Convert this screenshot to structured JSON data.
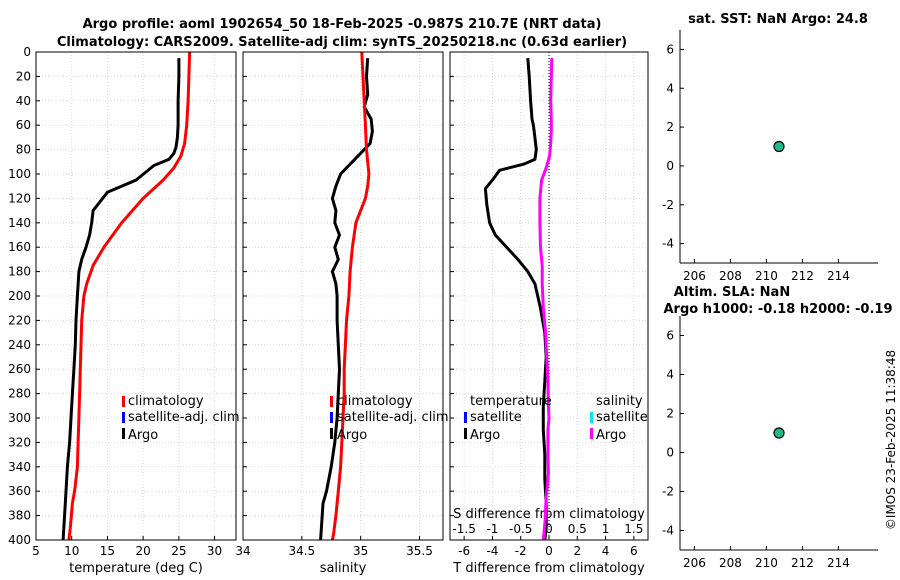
{
  "header": {
    "title_line1": "Argo profile: aoml 1902654_50 18-Feb-2025 -0.987S 210.7E (NRT data)",
    "title_line2": "Climatology: CARS2009. Satellite-adj clim: synTS_20250218.nc (0.63d earlier)"
  },
  "right_panels": {
    "sst_title": "sat. SST: NaN Argo: 24.8",
    "sla_title_line1": "Altim. SLA: NaN",
    "sla_title_line2": "Argo h1000: -0.18 h2000: -0.19"
  },
  "stamp": "©IMOS 23-Feb-2025 11:38:48",
  "colors": {
    "argo": "#000000",
    "climatology": "#ff0000",
    "satellite": "#0000ff",
    "s_satellite": "#00e5ee",
    "s_argo": "#ff00ff",
    "marker_fill": "#1abc8c"
  },
  "chart_data": [
    {
      "type": "line",
      "title": "",
      "xlabel": "temperature (deg C)",
      "ylabel": "",
      "xlim": [
        5,
        33
      ],
      "ylim": [
        400,
        0
      ],
      "xticks": [
        "5",
        "10",
        "15",
        "20",
        "25",
        "30"
      ],
      "yticks": [
        "0",
        "20",
        "40",
        "60",
        "80",
        "100",
        "120",
        "140",
        "160",
        "180",
        "200",
        "220",
        "240",
        "260",
        "280",
        "300",
        "320",
        "340",
        "360",
        "380",
        "400"
      ],
      "legend": [
        "climatology",
        "satellite-adj. clim",
        "Argo"
      ],
      "series": [
        {
          "name": "Argo",
          "color": "#000000",
          "x": [
            25.0,
            25.0,
            24.9,
            24.9,
            24.8,
            24.6,
            24.3,
            23.6,
            21.5,
            19.0,
            15.0,
            13.0,
            12.8,
            12.5,
            12.0,
            11.4,
            11.0,
            10.8,
            10.6,
            10.5,
            10.3,
            10.1,
            9.9,
            9.7,
            9.4,
            9.1,
            8.8
          ],
          "y": [
            5,
            20,
            40,
            60,
            70,
            78,
            83,
            88,
            93,
            105,
            115,
            130,
            140,
            150,
            160,
            170,
            180,
            200,
            220,
            240,
            260,
            280,
            300,
            320,
            340,
            370,
            400
          ]
        },
        {
          "name": "climatology",
          "color": "#ff0000",
          "x": [
            26.5,
            26.4,
            26.3,
            26.1,
            25.8,
            25.3,
            24.3,
            22.8,
            20.0,
            17.0,
            14.5,
            13.0,
            12.1,
            11.7,
            11.4,
            11.3,
            11.2,
            11.1,
            11.0,
            10.9,
            10.8,
            10.6,
            10.4,
            10.1,
            9.8,
            9.6
          ],
          "y": [
            0,
            20,
            40,
            60,
            75,
            85,
            95,
            105,
            120,
            140,
            160,
            175,
            190,
            200,
            220,
            240,
            260,
            280,
            300,
            320,
            340,
            350,
            360,
            370,
            390,
            400
          ]
        }
      ]
    },
    {
      "type": "line",
      "title": "",
      "xlabel": "salinity",
      "ylabel": "",
      "xlim": [
        34.0,
        35.7
      ],
      "ylim": [
        400,
        0
      ],
      "xticks": [
        "34",
        "34.5",
        "35",
        "35.5"
      ],
      "yticks": [],
      "legend": [
        "climatology",
        "satellite-adj. clim",
        "Argo"
      ],
      "series": [
        {
          "name": "Argo",
          "color": "#000000",
          "x": [
            35.06,
            35.05,
            35.06,
            35.03,
            35.09,
            35.1,
            35.08,
            34.93,
            34.83,
            34.79,
            34.76,
            34.79,
            34.78,
            34.82,
            34.78,
            34.81,
            34.76,
            34.79,
            34.8,
            34.8,
            34.81,
            34.82,
            34.81,
            34.8,
            34.78,
            34.75,
            34.71,
            34.68,
            34.67,
            34.66
          ],
          "y": [
            5,
            20,
            35,
            45,
            55,
            65,
            75,
            90,
            100,
            110,
            120,
            130,
            140,
            150,
            160,
            170,
            180,
            190,
            200,
            220,
            240,
            260,
            280,
            300,
            320,
            340,
            360,
            370,
            385,
            400
          ]
        },
        {
          "name": "climatology",
          "color": "#ff0000",
          "x": [
            35.01,
            35.02,
            35.03,
            35.04,
            35.05,
            35.06,
            35.07,
            35.06,
            35.04,
            35.0,
            34.96,
            34.93,
            34.91,
            34.9,
            34.88,
            34.87,
            34.86,
            34.86,
            34.85,
            34.84,
            34.83,
            34.81,
            34.79,
            34.77,
            34.76
          ],
          "y": [
            0,
            20,
            40,
            60,
            80,
            90,
            100,
            110,
            120,
            130,
            140,
            160,
            180,
            200,
            220,
            240,
            260,
            280,
            300,
            320,
            340,
            360,
            380,
            395,
            400
          ]
        }
      ]
    },
    {
      "type": "line",
      "title": "",
      "xlabel": "T difference from climatology",
      "secondary_xlabel": "S difference from climatology",
      "ylabel": "",
      "xlim": [
        -7,
        7
      ],
      "ylim": [
        400,
        0
      ],
      "xticks": [
        "-6",
        "-4",
        "-2",
        "0",
        "2",
        "4",
        "6"
      ],
      "secondary_xticks": [
        "-1.5",
        "-1",
        "-0.5",
        "0",
        "0.5",
        "1",
        "1.5"
      ],
      "secondary_xlim": [
        -1.75,
        1.75
      ],
      "yticks": [],
      "legend_temperature": {
        "title": "temperature",
        "items": [
          "satellite",
          "Argo"
        ]
      },
      "legend_salinity": {
        "title": "salinity",
        "items": [
          "satellite",
          "Argo"
        ]
      },
      "series": [
        {
          "name": "T difference (Argo)",
          "color": "#000000",
          "x": [
            -1.5,
            -1.4,
            -1.3,
            -1.2,
            -1.1,
            -1.0,
            -0.9,
            -1.0,
            -1.8,
            -3.5,
            -4.0,
            -4.5,
            -4.4,
            -4.2,
            -3.8,
            -3.0,
            -2.2,
            -1.5,
            -1.0,
            -0.6,
            -0.3,
            -0.2,
            -0.3,
            -0.4,
            -0.4,
            -0.3,
            -0.3,
            -0.2,
            -0.2,
            -0.3
          ],
          "y": [
            5,
            20,
            40,
            55,
            60,
            70,
            80,
            88,
            92,
            97,
            105,
            112,
            125,
            140,
            150,
            160,
            170,
            180,
            190,
            210,
            230,
            250,
            270,
            290,
            310,
            330,
            350,
            370,
            390,
            400
          ]
        },
        {
          "name": "S difference (Argo)",
          "color": "#ff00ff",
          "x": [
            0.05,
            0.04,
            0.03,
            0.04,
            0.04,
            0.03,
            0.01,
            -0.05,
            -0.13,
            -0.16,
            -0.16,
            -0.15,
            -0.12,
            -0.12,
            -0.1,
            -0.06,
            -0.04,
            -0.02,
            -0.01,
            0.0,
            -0.02,
            -0.02,
            -0.01,
            -0.03,
            -0.05,
            -0.06,
            -0.07,
            -0.09,
            -0.1
          ],
          "y": [
            5,
            20,
            40,
            55,
            65,
            75,
            85,
            95,
            105,
            120,
            140,
            160,
            175,
            190,
            210,
            230,
            250,
            270,
            290,
            300,
            310,
            330,
            345,
            355,
            365,
            375,
            385,
            395,
            400
          ]
        }
      ]
    },
    {
      "type": "scatter",
      "title": "sat. SST: NaN Argo: 24.8",
      "xlabel": "",
      "ylabel": "",
      "xlim": [
        205.2,
        216.2
      ],
      "ylim": [
        -5,
        7
      ],
      "xticks": [
        "206",
        "208",
        "210",
        "212",
        "214"
      ],
      "yticks": [
        "6",
        "4",
        "2",
        "0",
        "-2",
        "-4"
      ],
      "points": [
        {
          "x": 210.7,
          "y": 1.0
        }
      ]
    },
    {
      "type": "scatter",
      "title": "Altim. SLA: NaN",
      "xlabel": "",
      "ylabel": "",
      "xlim": [
        205.2,
        216.2
      ],
      "ylim": [
        -5,
        7
      ],
      "xticks": [
        "206",
        "208",
        "210",
        "212",
        "214"
      ],
      "yticks": [
        "6",
        "4",
        "2",
        "0",
        "-2",
        "-4"
      ],
      "points": [
        {
          "x": 210.7,
          "y": 1.0
        }
      ]
    }
  ]
}
